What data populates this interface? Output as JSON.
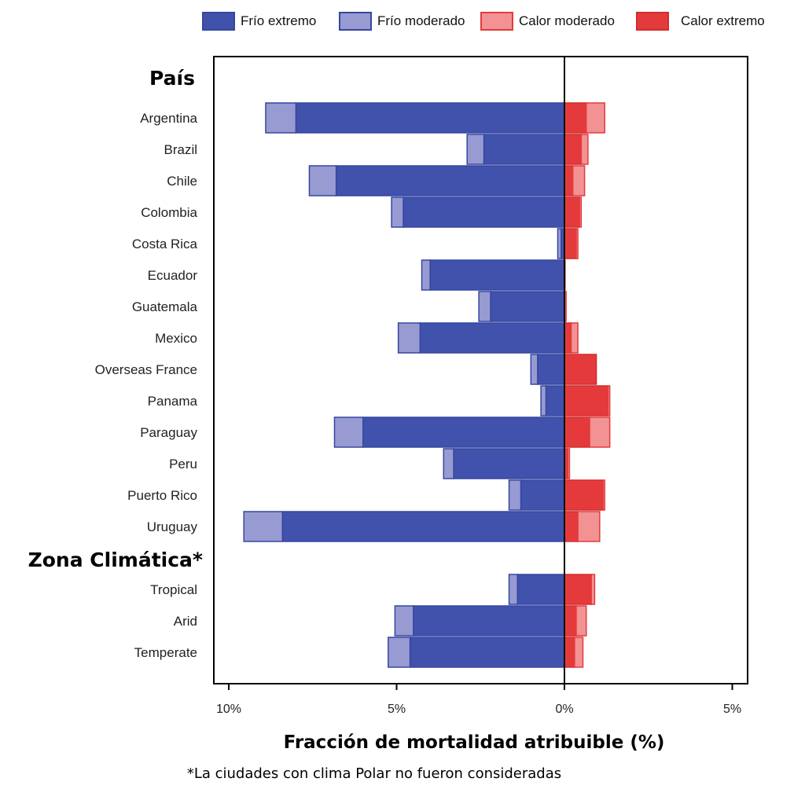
{
  "chart_data": {
    "type": "bar",
    "orientation": "horizontal",
    "stacked": "diverging",
    "legend": [
      {
        "name": "Frío extremo",
        "color": "#4152ad",
        "stroke": "#3646a0"
      },
      {
        "name": "Frío moderado",
        "color": "#979bd2",
        "stroke": "#3646a0"
      },
      {
        "name": "Calor moderado",
        "color": "#f29293",
        "stroke": "#e43b3d"
      },
      {
        "name": "Calor extremo",
        "color": "#e53a3c",
        "stroke": "#d22d30"
      }
    ],
    "legend_position": "top",
    "sections": [
      {
        "label": "País",
        "start_index": 0
      },
      {
        "label": "Zona Climática*",
        "start_index": 14
      }
    ],
    "categories": [
      "Argentina",
      "Brazil",
      "Chile",
      "Colombia",
      "Costa Rica",
      "Ecuador",
      "Guatemala",
      "Mexico",
      "Overseas France",
      "Panama",
      "Paraguay",
      "Peru",
      "Puerto Rico",
      "Uruguay",
      "Tropical",
      "Arid",
      "Temperate"
    ],
    "series": [
      {
        "name": "Frío extremo",
        "values": [
          -8.0,
          -2.4,
          -6.8,
          -4.8,
          -0.1,
          -4.0,
          -2.2,
          -4.3,
          -0.8,
          -0.55,
          -6.0,
          -3.3,
          -1.3,
          -8.4,
          -1.4,
          -4.5,
          -4.6
        ]
      },
      {
        "name": "Frío moderado",
        "values": [
          -0.9,
          -0.5,
          -0.8,
          -0.35,
          -0.1,
          -0.25,
          -0.35,
          -0.65,
          -0.2,
          -0.15,
          -0.85,
          -0.3,
          -0.35,
          -1.15,
          -0.25,
          -0.55,
          -0.65
        ]
      },
      {
        "name": "Calor extremo",
        "values": [
          0.65,
          0.5,
          0.25,
          0.45,
          0.35,
          0.0,
          0.0,
          0.2,
          0.95,
          1.3,
          0.75,
          0.1,
          1.15,
          0.4,
          0.8,
          0.35,
          0.3
        ]
      },
      {
        "name": "Calor moderado",
        "values": [
          0.55,
          0.2,
          0.35,
          0.05,
          0.05,
          0.02,
          0.05,
          0.2,
          0.0,
          0.05,
          0.6,
          0.05,
          0.05,
          0.65,
          0.1,
          0.3,
          0.25
        ]
      }
    ],
    "xlim": [
      -10.5,
      5.5
    ],
    "xticks": [
      -10,
      -5,
      0,
      5
    ],
    "xtick_labels": [
      "10%",
      "5%",
      "0%",
      "5%"
    ],
    "xlabel": "Fracción de mortalidad atribuible (%)",
    "ylabel": "",
    "grid": false,
    "footnote": "*La ciudades con clima Polar no fueron consideradas"
  }
}
